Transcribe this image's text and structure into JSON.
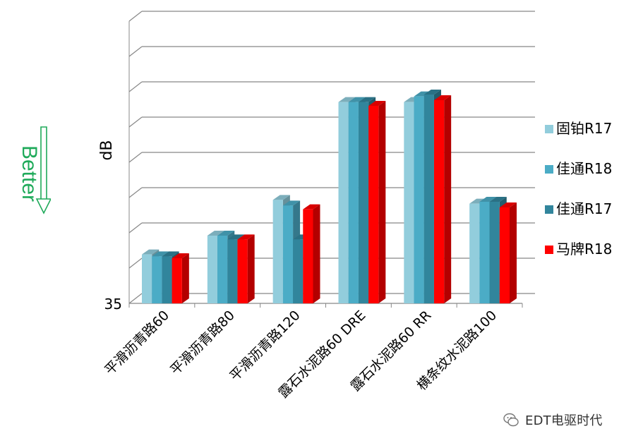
{
  "chart_data": {
    "type": "bar",
    "title": "",
    "xlabel": "",
    "ylabel": "dB",
    "y_min_label": "35",
    "ylim": [
      35,
      50
    ],
    "grid": true,
    "legend_position": "right",
    "categories": [
      "平滑沥青路60",
      "平滑沥青路80",
      "平滑沥青路120",
      "露石水泥路60 DRE",
      "露石水泥路60 RR",
      "横条纹水泥路100"
    ],
    "series": [
      {
        "name": "固铂R17",
        "color": "#92CDDC",
        "values": [
          37.6,
          38.6,
          40.5,
          45.7,
          45.7,
          40.3
        ]
      },
      {
        "name": "佳通R18",
        "color": "#4BACC6",
        "values": [
          37.5,
          38.6,
          40.2,
          45.7,
          46.0,
          40.4
        ]
      },
      {
        "name": "佳通R17",
        "color": "#31859C",
        "values": [
          37.5,
          38.4,
          38.4,
          45.7,
          46.1,
          40.4
        ]
      },
      {
        "name": "马牌R18",
        "color": "#FF0000",
        "values": [
          37.4,
          38.4,
          40.0,
          45.5,
          45.8,
          40.1
        ]
      }
    ]
  },
  "annotation": {
    "better_text": "Better",
    "arrow": "down-arrow-icon",
    "color": "#1FAA5A"
  },
  "watermark": {
    "text": "EDT电驱时代",
    "icon": "wechat-icon"
  }
}
